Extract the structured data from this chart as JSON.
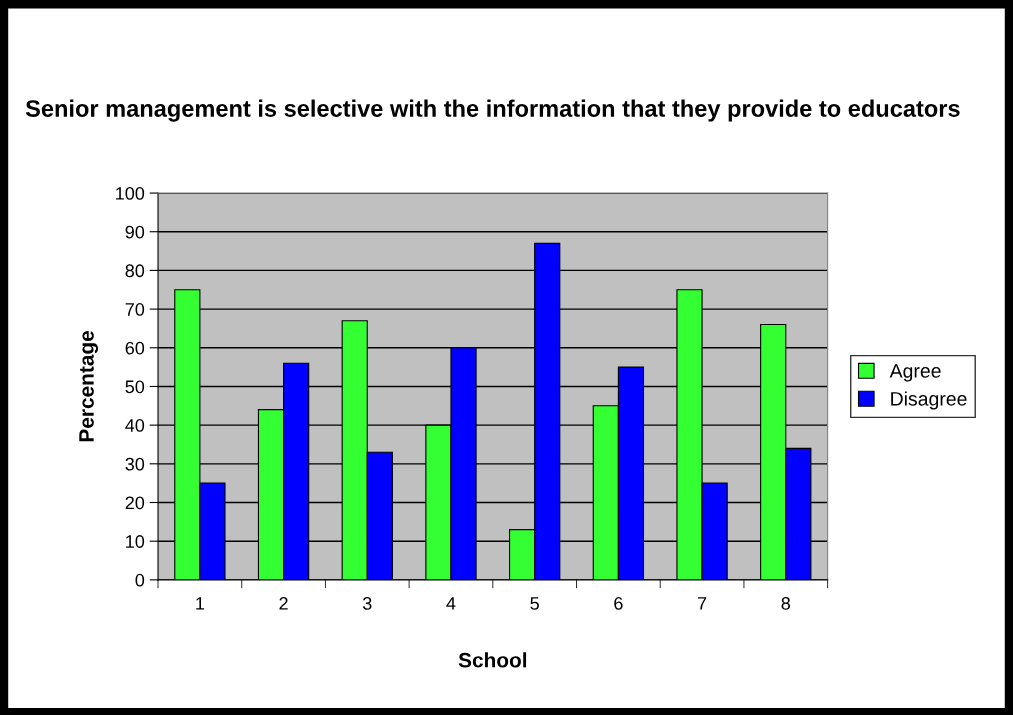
{
  "chart_data": {
    "type": "bar",
    "title": "Senior management is selective with the information that they provide to educators",
    "xlabel": "School",
    "ylabel": "Percentage",
    "categories": [
      "1",
      "2",
      "3",
      "4",
      "5",
      "6",
      "7",
      "8"
    ],
    "series": [
      {
        "name": "Agree",
        "color": "#33ff33",
        "values": [
          75,
          44,
          67,
          40,
          13,
          45,
          75,
          66
        ]
      },
      {
        "name": "Disagree",
        "color": "#0000ff",
        "values": [
          25,
          56,
          33,
          60,
          87,
          55,
          25,
          34
        ]
      }
    ],
    "ylim": [
      0,
      100
    ],
    "yticks": [
      0,
      10,
      20,
      30,
      40,
      50,
      60,
      70,
      80,
      90,
      100
    ],
    "grid": "y",
    "legend": "right"
  }
}
